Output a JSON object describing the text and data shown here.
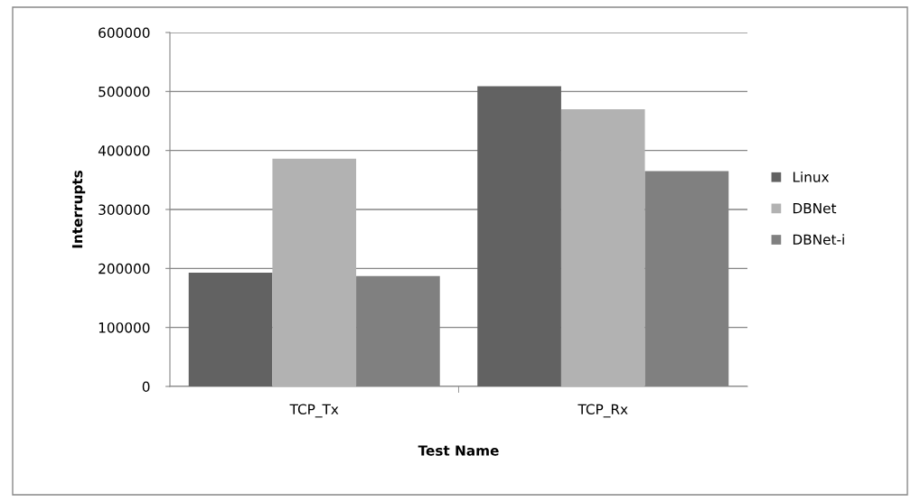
{
  "chart_data": {
    "type": "bar",
    "xlabel": "Test Name",
    "ylabel": "Interrupts",
    "categories": [
      "TCP_Tx",
      "TCP_Rx"
    ],
    "series": [
      {
        "name": "Linux",
        "color": "#626262",
        "values": [
          193000,
          509000
        ]
      },
      {
        "name": "DBNet",
        "color": "#b2b2b2",
        "values": [
          386000,
          470000
        ]
      },
      {
        "name": "DBNet-i",
        "color": "#808080",
        "values": [
          187000,
          365000
        ]
      }
    ],
    "ylim": [
      0,
      600000
    ],
    "yticks": [
      0,
      100000,
      200000,
      300000,
      400000,
      500000,
      600000
    ],
    "grid": "y",
    "legend": "right"
  }
}
